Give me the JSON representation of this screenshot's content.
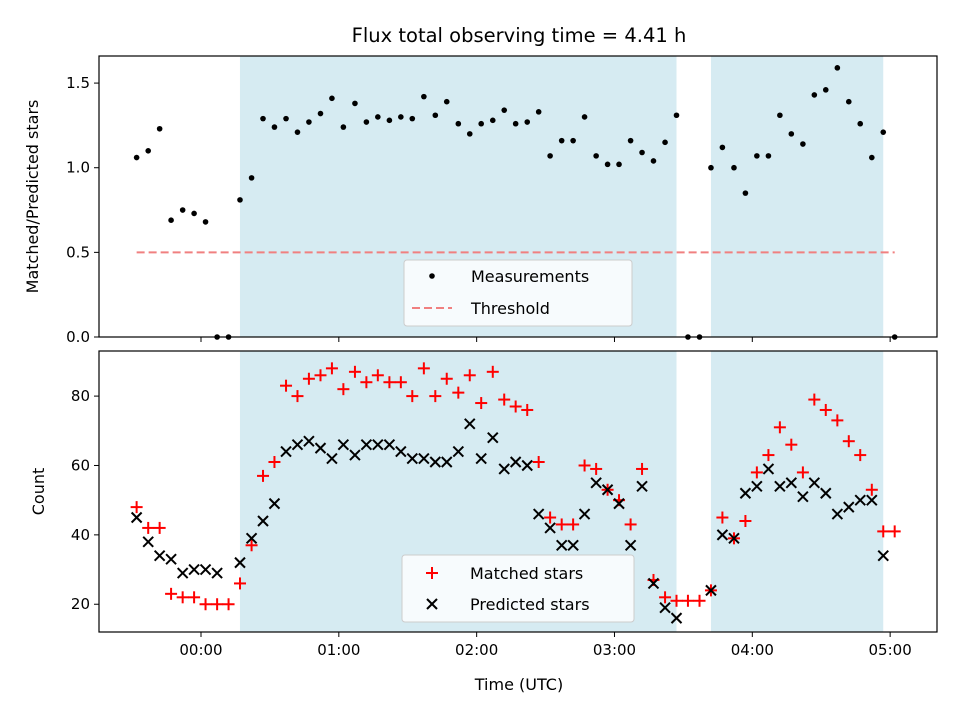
{
  "colors": {
    "observing_band": "#add8e6",
    "measurement": "#000000",
    "threshold": "#f08080",
    "matched": "#ff0000",
    "predicted": "#000000"
  },
  "chart_data": {
    "title": "Flux total observing time = 4.41 h",
    "xlabel": "Time (UTC)",
    "x_unit": "hours since 00:00 UTC",
    "xlim": [
      -0.74,
      5.34
    ],
    "x_ticks": [
      {
        "value": 0,
        "label": "00:00"
      },
      {
        "value": 1,
        "label": "01:00"
      },
      {
        "value": 2,
        "label": "02:00"
      },
      {
        "value": 3,
        "label": "03:00"
      },
      {
        "value": 4,
        "label": "04:00"
      },
      {
        "value": 5,
        "label": "05:00"
      }
    ],
    "observing_intervals": [
      [
        0.283,
        3.45
      ],
      [
        3.7,
        4.95
      ]
    ],
    "top": {
      "type": "scatter",
      "ylabel": "Matched/Predicted stars",
      "ylim": [
        0,
        1.66
      ],
      "y_ticks": [
        {
          "value": 0,
          "label": "0.0"
        },
        {
          "value": 0.5,
          "label": "0.5"
        },
        {
          "value": 1.0,
          "label": "1.0"
        },
        {
          "value": 1.5,
          "label": "1.5"
        }
      ],
      "legend": {
        "measurements": "Measurements",
        "threshold": "Threshold"
      },
      "threshold": {
        "value": 0.5,
        "x": [
          -0.467,
          5.033
        ]
      },
      "measurements": {
        "x": [
          -0.467,
          -0.383,
          -0.3,
          -0.217,
          -0.133,
          -0.05,
          0.033,
          0.117,
          0.2,
          0.283,
          0.367,
          0.45,
          0.533,
          0.617,
          0.7,
          0.783,
          0.867,
          0.95,
          1.033,
          1.117,
          1.2,
          1.283,
          1.367,
          1.45,
          1.533,
          1.617,
          1.7,
          1.783,
          1.867,
          1.95,
          2.033,
          2.117,
          2.2,
          2.283,
          2.367,
          2.45,
          2.533,
          2.617,
          2.7,
          2.783,
          2.867,
          2.95,
          3.033,
          3.117,
          3.2,
          3.283,
          3.367,
          3.45,
          3.533,
          3.617,
          3.7,
          3.783,
          3.867,
          3.95,
          4.033,
          4.117,
          4.2,
          4.283,
          4.367,
          4.45,
          4.533,
          4.617,
          4.7,
          4.783,
          4.867,
          4.95,
          5.033
        ],
        "y": [
          1.06,
          1.1,
          1.23,
          0.69,
          0.75,
          0.73,
          0.68,
          0.0,
          0.0,
          0.81,
          0.94,
          1.29,
          1.24,
          1.29,
          1.21,
          1.27,
          1.32,
          1.41,
          1.24,
          1.38,
          1.27,
          1.3,
          1.28,
          1.3,
          1.29,
          1.42,
          1.31,
          1.39,
          1.26,
          1.2,
          1.26,
          1.28,
          1.34,
          1.26,
          1.27,
          1.33,
          1.07,
          1.16,
          1.16,
          1.3,
          1.07,
          1.02,
          1.02,
          1.16,
          1.09,
          1.04,
          1.15,
          1.31,
          0.0,
          0.0,
          1.0,
          1.12,
          1.0,
          0.85,
          1.07,
          1.07,
          1.31,
          1.2,
          1.14,
          1.43,
          1.46,
          1.59,
          1.39,
          1.26,
          1.06,
          1.21,
          0.0
        ]
      }
    },
    "bottom": {
      "type": "scatter",
      "ylabel": "Count",
      "ylim": [
        12,
        93
      ],
      "y_ticks": [
        {
          "value": 20,
          "label": "20"
        },
        {
          "value": 40,
          "label": "40"
        },
        {
          "value": 60,
          "label": "60"
        },
        {
          "value": 80,
          "label": "80"
        }
      ],
      "legend": {
        "matched": "Matched stars",
        "predicted": "Predicted stars"
      },
      "x": [
        -0.467,
        -0.383,
        -0.3,
        -0.217,
        -0.133,
        -0.05,
        0.033,
        0.117,
        0.2,
        0.283,
        0.367,
        0.45,
        0.533,
        0.617,
        0.7,
        0.783,
        0.867,
        0.95,
        1.033,
        1.117,
        1.2,
        1.283,
        1.367,
        1.45,
        1.533,
        1.617,
        1.7,
        1.783,
        1.867,
        1.95,
        2.033,
        2.117,
        2.2,
        2.283,
        2.367,
        2.45,
        2.533,
        2.617,
        2.7,
        2.783,
        2.867,
        2.95,
        3.033,
        3.117,
        3.2,
        3.283,
        3.367,
        3.45,
        3.533,
        3.617,
        3.7,
        3.783,
        3.867,
        3.95,
        4.033,
        4.117,
        4.2,
        4.283,
        4.367,
        4.45,
        4.533,
        4.617,
        4.7,
        4.783,
        4.867,
        4.95,
        5.033
      ],
      "series": [
        {
          "name": "Matched stars",
          "values": [
            48,
            42,
            42,
            23,
            22,
            22,
            20,
            20,
            20,
            26,
            37,
            57,
            61,
            83,
            80,
            85,
            86,
            88,
            82,
            87,
            84,
            86,
            84,
            84,
            80,
            88,
            80,
            85,
            81,
            86,
            78,
            87,
            79,
            77,
            76,
            61,
            45,
            43,
            43,
            60,
            59,
            53,
            50,
            43,
            59,
            27,
            22,
            21,
            21,
            21,
            24,
            45,
            39,
            44,
            58,
            63,
            71,
            66,
            58,
            79,
            76,
            73,
            67,
            63,
            53,
            41,
            41
          ]
        },
        {
          "name": "Predicted stars",
          "values": [
            45,
            38,
            34,
            33,
            29,
            30,
            30,
            29,
            null,
            32,
            39,
            44,
            49,
            64,
            66,
            67,
            65,
            62,
            66,
            63,
            66,
            66,
            66,
            64,
            62,
            62,
            61,
            61,
            64,
            72,
            62,
            68,
            59,
            61,
            60,
            46,
            42,
            37,
            37,
            46,
            55,
            53,
            49,
            37,
            54,
            26,
            19,
            16,
            null,
            null,
            24,
            40,
            39,
            52,
            54,
            59,
            54,
            55,
            51,
            55,
            52,
            46,
            48,
            50,
            50,
            34,
            null
          ]
        }
      ]
    }
  }
}
